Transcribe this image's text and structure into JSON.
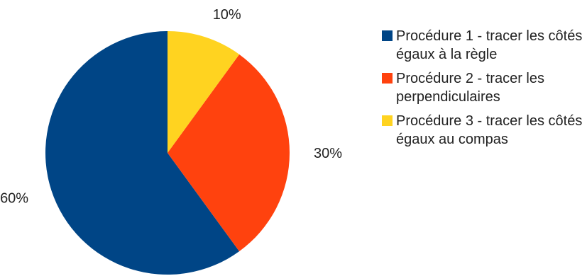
{
  "chart_data": {
    "type": "pie",
    "title": "",
    "categories": [
      "Procédure 1 - tracer les côtés égaux à la règle",
      "Procédure 2 - tracer les perpendiculaires",
      "Procédure 3 - tracer les côtés égaux au compas"
    ],
    "values": [
      60,
      30,
      10
    ],
    "value_labels": [
      "60%",
      "30%",
      "10%"
    ],
    "colors": [
      "#004586",
      "#ff420e",
      "#ffd320"
    ],
    "legend_position": "right",
    "start_angle": "top",
    "direction": "counterclockwise"
  }
}
